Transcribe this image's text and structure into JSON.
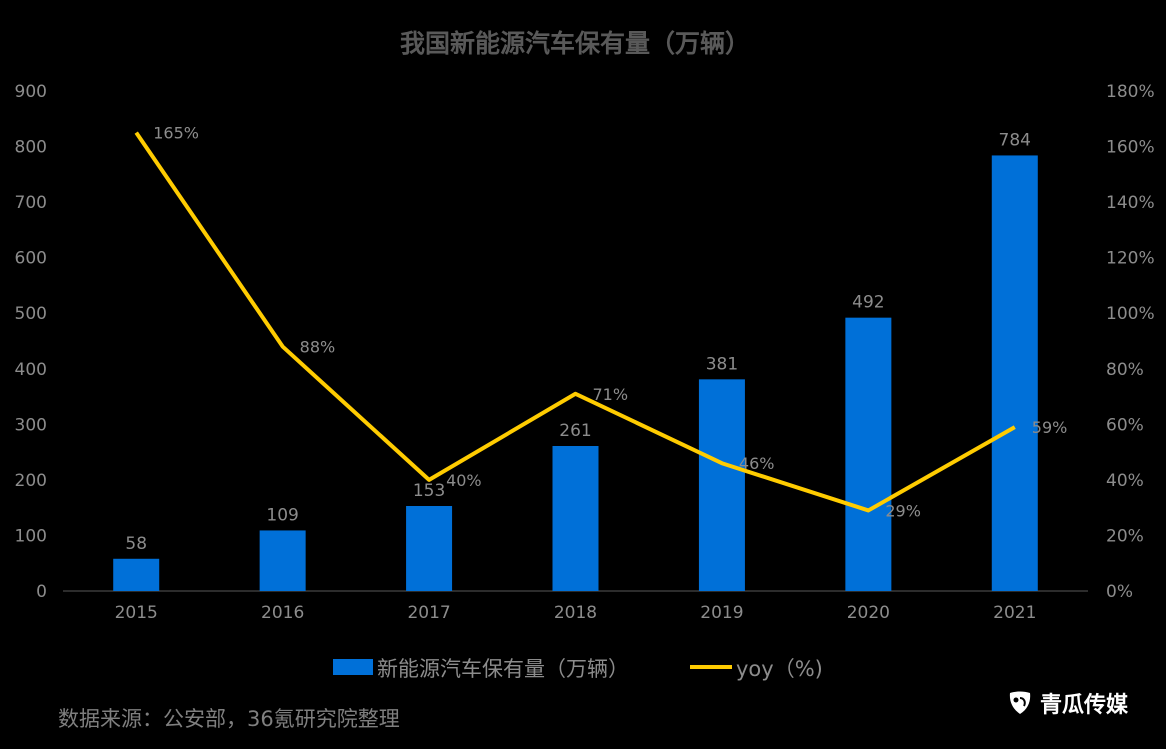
{
  "chart_data": {
    "type": "bar",
    "title": "我国新能源汽车保有量（万辆）",
    "categories": [
      "2015",
      "2016",
      "2017",
      "2018",
      "2019",
      "2020",
      "2021"
    ],
    "series": [
      {
        "name": "新能源汽车保有量（万辆）",
        "type": "bar",
        "axis": "left",
        "color": "#0070d8",
        "values": [
          58,
          109,
          153,
          261,
          381,
          492,
          784
        ],
        "labels": [
          "58",
          "109",
          "153",
          "261",
          "381",
          "492",
          "784"
        ]
      },
      {
        "name": "yoy（%)",
        "type": "line",
        "axis": "right",
        "color": "#ffcc00",
        "values": [
          165,
          88,
          40,
          71,
          46,
          29,
          59
        ],
        "labels": [
          "165%",
          "88%",
          "40%",
          "71%",
          "46%",
          "29%",
          "59%"
        ]
      }
    ],
    "y_left": {
      "min": 0,
      "max": 900,
      "ticks": [
        "0",
        "100",
        "200",
        "300",
        "400",
        "500",
        "600",
        "700",
        "800",
        "900"
      ]
    },
    "y_right": {
      "min": 0,
      "max": 180,
      "ticks": [
        "0%",
        "20%",
        "40%",
        "60%",
        "80%",
        "100%",
        "120%",
        "140%",
        "160%",
        "180%"
      ]
    },
    "grid": false,
    "legend_position": "bottom"
  },
  "footer": {
    "source": "数据来源：公安部，36氪研究院整理",
    "brand": "青瓜传媒",
    "brand_icon": "qinggua-logo-icon"
  },
  "colors": {
    "background": "#000000",
    "text": "#8c8c8c",
    "title": "#595959",
    "bar": "#0070d8",
    "line": "#ffcc00",
    "axis": "#595959"
  }
}
